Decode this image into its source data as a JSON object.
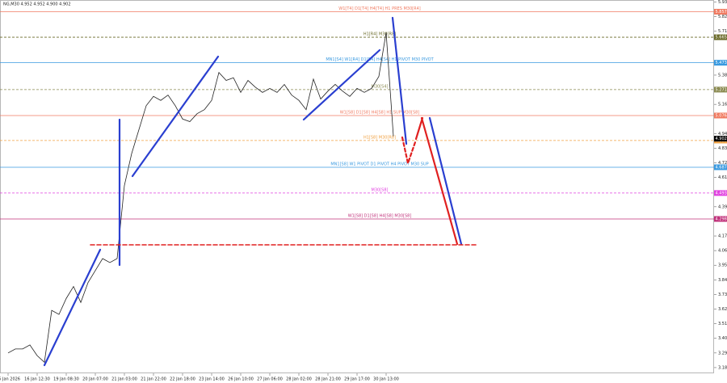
{
  "chart_data": {
    "type": "line",
    "title": "NG,M30  4.952 4.952 4.900 4.902",
    "categories": [
      "15 Jan 2026",
      null,
      null,
      null,
      "16 Jan 12:30",
      null,
      null,
      null,
      "19 Jan 08:30",
      null,
      null,
      null,
      "20 Jan 07:00",
      null,
      null,
      null,
      "21 Jan 03:00",
      null,
      null,
      null,
      "21 Jan 22:00",
      null,
      null,
      null,
      "22 Jan 18:00",
      null,
      null,
      null,
      "23 Jan 14:00",
      null,
      null,
      null,
      "26 Jan 10:00",
      null,
      null,
      null,
      "27 Jan 06:00",
      null,
      null,
      null,
      "28 Jan 02:00",
      null,
      null,
      null,
      "28 Jan 21:00",
      null,
      null,
      null,
      "29 Jan 17:00",
      null,
      null,
      null,
      "30 Jan 13:00",
      null
    ],
    "series": [
      {
        "color": "#222222",
        "values": [
          3.29,
          3.32,
          3.32,
          3.35,
          3.27,
          3.22,
          3.61,
          3.58,
          3.7,
          3.79,
          3.67,
          3.82,
          3.91,
          4.0,
          3.97,
          4.0,
          4.55,
          4.79,
          4.97,
          5.15,
          5.22,
          5.19,
          5.23,
          5.15,
          5.05,
          5.03,
          5.09,
          5.12,
          5.19,
          5.4,
          5.34,
          5.36,
          5.25,
          5.34,
          5.29,
          5.25,
          5.28,
          5.25,
          5.31,
          5.23,
          5.19,
          5.12,
          5.35,
          5.2,
          5.26,
          5.31,
          5.26,
          5.22,
          5.28,
          5.25,
          5.28,
          5.37,
          5.7,
          4.92
        ]
      }
    ],
    "ylim": [
      3.137,
      5.945
    ],
    "yticks": [
      {
        "value": 5.93,
        "label": "5.930"
      },
      {
        "value": 5.82,
        "label": "5.820"
      },
      {
        "value": 5.71,
        "label": "5.710"
      },
      {
        "value": 5.38,
        "label": "5.380"
      },
      {
        "value": 5.16,
        "label": "5.160"
      },
      {
        "value": 4.94,
        "label": "4.940"
      },
      {
        "value": 4.83,
        "label": "4.830"
      },
      {
        "value": 4.72,
        "label": "4.720"
      },
      {
        "value": 4.61,
        "label": "4.610"
      },
      {
        "value": 4.39,
        "label": "4.390"
      },
      {
        "value": 4.17,
        "label": "4.170"
      },
      {
        "value": 4.06,
        "label": "4.060"
      },
      {
        "value": 3.95,
        "label": "3.950"
      },
      {
        "value": 3.84,
        "label": "3.840"
      },
      {
        "value": 3.73,
        "label": "3.730"
      },
      {
        "value": 3.62,
        "label": "3.620"
      },
      {
        "value": 3.51,
        "label": "3.510"
      },
      {
        "value": 3.4,
        "label": "3.400"
      },
      {
        "value": 3.29,
        "label": "3.290"
      },
      {
        "value": 3.18,
        "label": "3.180"
      }
    ],
    "levels": [
      {
        "value": 5.857,
        "text": "W1[T4] D1[T4] H4[T4] H1 PRES M30[R4]",
        "color": "#f07a60",
        "dash": false
      },
      {
        "value": 5.665,
        "text": "H1[R4] M30[R8]",
        "color": "#6b6b2a",
        "dash": true
      },
      {
        "value": 5.473,
        "text": "MN1[S4] W1[R4] D1[R4] H4[S4] H1 PIVOT M30 PIVOT",
        "color": "#3a9ae0",
        "dash": false
      },
      {
        "value": 5.271,
        "text": "M30[S4]",
        "color": "#8a8a50",
        "dash": true
      },
      {
        "value": 5.076,
        "text": "W1[S8] D1[S8] H4[S8] H1 SUP M30[S8]",
        "color": "#f07a60",
        "dash": false
      },
      {
        "value": 4.888,
        "text": "H1[S8] M30[R8]",
        "color": "#f0a040",
        "dash": true
      },
      {
        "value": 4.687,
        "text": "MN1[S8] W1 PIVOT D1 PIVOT H4 PIVOT M30 SUP",
        "color": "#3a9ae0",
        "dash": false
      },
      {
        "value": 4.493,
        "text": "M30[S8]",
        "color": "#e040e0",
        "dash": true
      },
      {
        "value": 4.298,
        "text": "W1[S8] D1[S8] H4[S8] M30[S8]",
        "color": "#c0307a",
        "dash": false
      }
    ],
    "bid": 4.902
  }
}
